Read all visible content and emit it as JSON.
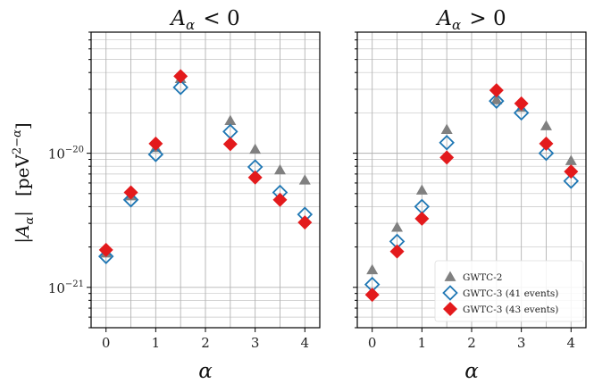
{
  "chart_data": {
    "type": "scatter",
    "ylabel": "|A_α|   [peV^(2−α)]",
    "yscale": "log",
    "ylim": [
      5e-22,
      8e-20
    ],
    "y_tick_labels": [
      "10^-21",
      "10^-20"
    ],
    "grid": true,
    "legend_placement": "lower-right of right panel",
    "colors": {
      "GWTC-2": "#808080",
      "GWTC-3 (41 events)": "#1f77b4",
      "GWTC-3 (43 events)": "#e31a1c"
    },
    "markers": {
      "GWTC-2": "triangle",
      "GWTC-3 (41 events)": "open-diamond",
      "GWTC-3 (43 events)": "filled-diamond"
    },
    "panels": [
      {
        "title": "A_α < 0",
        "xlabel": "α",
        "xlim": [
          -0.3,
          4.3
        ],
        "x_ticks": [
          0,
          1,
          2,
          3,
          4
        ],
        "series": [
          {
            "name": "GWTC-2",
            "x": [
              0,
              0.5,
              1,
              1.5,
              2.5,
              3,
              3.5,
              4
            ],
            "y": [
              1.8e-21,
              4.8e-21,
              1.1e-20,
              3.6e-20,
              1.75e-20,
              1.07e-20,
              7.5e-21,
              6.3e-21
            ]
          },
          {
            "name": "GWTC-3 (41 events)",
            "x": [
              0,
              0.5,
              1,
              1.5,
              2.5,
              3,
              3.5,
              4
            ],
            "y": [
              1.7e-21,
              4.5e-21,
              9.8e-21,
              3.1e-20,
              1.45e-20,
              7.9e-21,
              5.1e-21,
              3.5e-21
            ]
          },
          {
            "name": "GWTC-3 (43 events)",
            "x": [
              0,
              0.5,
              1,
              1.5,
              2.5,
              3,
              3.5,
              4
            ],
            "y": [
              1.9e-21,
              5.1e-21,
              1.18e-20,
              3.75e-20,
              1.17e-20,
              6.6e-21,
              4.5e-21,
              3.05e-21
            ]
          }
        ]
      },
      {
        "title": "A_α > 0",
        "xlabel": "α",
        "xlim": [
          -0.3,
          4.3
        ],
        "x_ticks": [
          0,
          1,
          2,
          3,
          4
        ],
        "series": [
          {
            "name": "GWTC-2",
            "x": [
              0,
              0.5,
              1,
              1.5,
              2.5,
              3,
              3.5,
              4
            ],
            "y": [
              1.35e-21,
              2.8e-21,
              5.3e-21,
              1.5e-20,
              2.5e-20,
              2.2e-20,
              1.6e-20,
              8.8e-21
            ]
          },
          {
            "name": "GWTC-3 (41 events)",
            "x": [
              0,
              0.5,
              1,
              1.5,
              2.5,
              3,
              3.5,
              4
            ],
            "y": [
              1.05e-21,
              2.2e-21,
              4e-21,
              1.2e-20,
              2.45e-20,
              2e-20,
              1e-20,
              6.2e-21
            ]
          },
          {
            "name": "GWTC-3 (43 events)",
            "x": [
              0,
              0.5,
              1,
              1.5,
              2.5,
              3,
              3.5,
              4
            ],
            "y": [
              8.8e-22,
              1.85e-21,
              3.25e-21,
              9.3e-21,
              2.95e-20,
              2.35e-20,
              1.18e-20,
              7.3e-21
            ]
          }
        ]
      }
    ],
    "legend": [
      "GWTC-2",
      "GWTC-3 (41 events)",
      "GWTC-3 (43 events)"
    ]
  }
}
